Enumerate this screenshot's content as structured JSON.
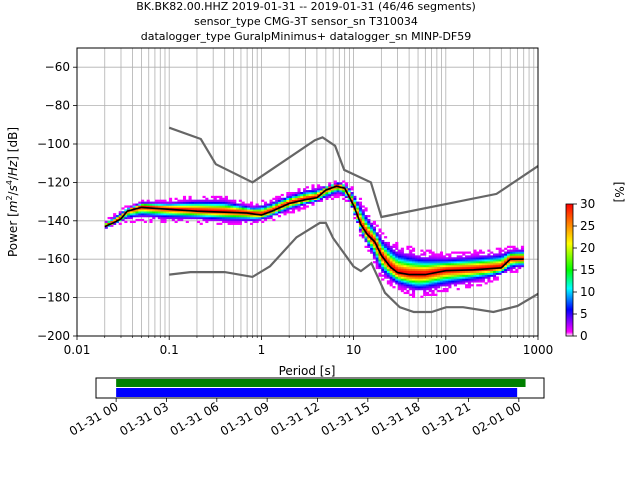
{
  "title_lines": [
    "BK.BK82.00.HHZ   2019-01-31 -- 2019-01-31  (46/46 segments)",
    "sensor_type CMG-3T sensor_sn T310034",
    "datalogger_type GuralpMinimus+ datalogger_sn MINP-DF59"
  ],
  "colorbar": {
    "label": "[%]",
    "ticks": [
      "0",
      "5",
      "10",
      "15",
      "20",
      "25",
      "30"
    ],
    "colormap": [
      "#ffffff",
      "#ff00ff",
      "#0000ff",
      "#00ffff",
      "#00ff00",
      "#ffff00",
      "#ff0000"
    ]
  },
  "timeline": {
    "ticks": [
      "01-31 00",
      "01-31 03",
      "01-31 06",
      "01-31 09",
      "01-31 12",
      "01-31 15",
      "01-31 18",
      "01-31 21",
      "02-01 00"
    ],
    "green_bar": {
      "start_hour": 0,
      "end_hour": 24.4
    },
    "blue_bar": {
      "start_hour": 0,
      "end_hour": 23.9
    },
    "range_hours": [
      -1.2,
      25.5
    ],
    "green_color": "#008000",
    "blue_color": "#0000ff"
  },
  "chart_data": {
    "type": "heatmap",
    "xlabel": "Period [s]",
    "ylabel_parts": [
      "Power [",
      "m",
      "2",
      "/",
      "s",
      "4",
      "/",
      "Hz",
      "] [dB]"
    ],
    "xscale": "log",
    "xlim": [
      0.01,
      1000
    ],
    "ylim": [
      -200,
      -50
    ],
    "xticks": [
      0.01,
      0.1,
      1,
      10,
      100,
      1000
    ],
    "xtick_labels": [
      "0.01",
      "0.1",
      "1",
      "10",
      "100",
      "1000"
    ],
    "yticks": [
      -200,
      -180,
      -160,
      -140,
      -120,
      -100,
      -80,
      -60
    ],
    "ytick_labels": [
      "−200",
      "−180",
      "−160",
      "−140",
      "−120",
      "−100",
      "−80",
      "−60"
    ],
    "grid": true,
    "nhnm": [
      [
        0.1,
        -168
      ],
      [
        0.17,
        -166.7
      ],
      [
        0.4,
        -166.7
      ],
      [
        0.8,
        -169.2
      ],
      [
        1.24,
        -163.7
      ],
      [
        2.4,
        -148.6
      ],
      [
        4.3,
        -141.1
      ],
      [
        5.0,
        -141.1
      ],
      [
        6.0,
        -149
      ],
      [
        10.0,
        -163.8
      ],
      [
        12.0,
        -166.2
      ],
      [
        15.6,
        -162.1
      ],
      [
        21.9,
        -177.5
      ],
      [
        31.6,
        -185
      ],
      [
        45,
        -187.5
      ],
      [
        70,
        -187.5
      ],
      [
        101,
        -185
      ],
      [
        154,
        -185
      ],
      [
        328,
        -187.5
      ],
      [
        600,
        -184.4
      ],
      [
        1000,
        -178
      ]
    ],
    "nlnm": [
      [
        0.1,
        -91.5
      ],
      [
        0.22,
        -97.4
      ],
      [
        0.32,
        -110.5
      ],
      [
        0.8,
        -120
      ],
      [
        3.8,
        -98
      ],
      [
        4.6,
        -96.5
      ],
      [
        6.3,
        -101
      ],
      [
        7.9,
        -113.5
      ],
      [
        15.4,
        -120
      ],
      [
        20,
        -138
      ],
      [
        354.8,
        -126
      ],
      [
        1000,
        -111.5
      ]
    ],
    "mode": [
      [
        0.02,
        -143
      ],
      [
        0.025,
        -141
      ],
      [
        0.03,
        -139
      ],
      [
        0.035,
        -135
      ],
      [
        0.05,
        -133
      ],
      [
        0.1,
        -134
      ],
      [
        0.2,
        -135
      ],
      [
        0.4,
        -135.5
      ],
      [
        0.7,
        -136
      ],
      [
        1.0,
        -137
      ],
      [
        1.3,
        -135
      ],
      [
        2.0,
        -131
      ],
      [
        3.0,
        -129
      ],
      [
        4.0,
        -128
      ],
      [
        5.0,
        -124
      ],
      [
        6.5,
        -122
      ],
      [
        8.0,
        -123
      ],
      [
        10.0,
        -132
      ],
      [
        12.0,
        -142
      ],
      [
        14.0,
        -147
      ],
      [
        17.0,
        -151
      ],
      [
        20.0,
        -158
      ],
      [
        25.0,
        -164
      ],
      [
        30.0,
        -167
      ],
      [
        40.0,
        -168
      ],
      [
        60.0,
        -168
      ],
      [
        100.0,
        -166
      ],
      [
        200.0,
        -165.5
      ],
      [
        400.0,
        -164.5
      ],
      [
        500.0,
        -160
      ],
      [
        700.0,
        -160
      ]
    ],
    "envelope_upper": [
      [
        0.02,
        -141
      ],
      [
        0.03,
        -135
      ],
      [
        0.05,
        -130
      ],
      [
        0.1,
        -130
      ],
      [
        0.2,
        -128
      ],
      [
        0.4,
        -128
      ],
      [
        0.8,
        -132
      ],
      [
        1.2,
        -130
      ],
      [
        2,
        -126
      ],
      [
        3,
        -123
      ],
      [
        5,
        -122
      ],
      [
        7,
        -120
      ],
      [
        9,
        -122
      ],
      [
        12,
        -130
      ],
      [
        16,
        -140
      ],
      [
        20,
        -147
      ],
      [
        30,
        -153
      ],
      [
        50,
        -156
      ],
      [
        100,
        -158
      ],
      [
        300,
        -156
      ],
      [
        600,
        -154
      ]
    ],
    "envelope_lower": [
      [
        0.02,
        -145
      ],
      [
        0.03,
        -141
      ],
      [
        0.05,
        -140
      ],
      [
        0.1,
        -141
      ],
      [
        0.2,
        -141
      ],
      [
        0.4,
        -142
      ],
      [
        0.8,
        -142
      ],
      [
        1.2,
        -140
      ],
      [
        2,
        -136
      ],
      [
        3,
        -133
      ],
      [
        5,
        -130
      ],
      [
        7,
        -127
      ],
      [
        9,
        -131
      ],
      [
        12,
        -148
      ],
      [
        16,
        -160
      ],
      [
        20,
        -170
      ],
      [
        30,
        -176
      ],
      [
        50,
        -180
      ],
      [
        100,
        -177
      ],
      [
        300,
        -172
      ],
      [
        600,
        -166
      ]
    ],
    "colorbar_range": [
      0,
      30
    ]
  }
}
